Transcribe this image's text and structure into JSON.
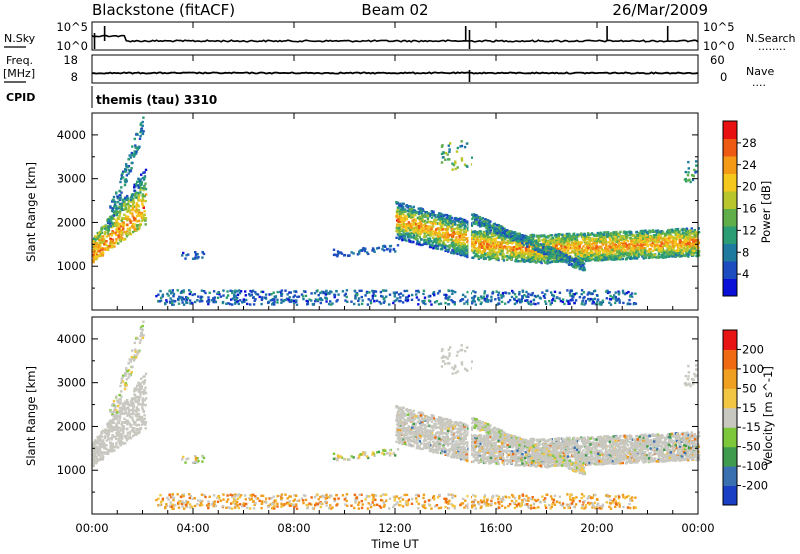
{
  "header": {
    "station": "Blackstone (fitACF)",
    "beam": "Beam 02",
    "date": "26/Mar/2009",
    "cpid_program": "themis (tau) 3310"
  },
  "left_labels": {
    "nsky": "N.Sky",
    "freq_line1": "Freq.",
    "freq_line2": "[MHz]",
    "cpid": "CPID"
  },
  "right_labels": {
    "nsearch": "N.Search",
    "nsearch_dots": "........",
    "nave": "Nave",
    "nave_dots": "...."
  },
  "noise_axis": {
    "left_ticks": [
      "10^5",
      "10^0"
    ],
    "right_ticks": [
      "10^5",
      "10^0"
    ]
  },
  "freq_axis": {
    "left_ticks": [
      "18",
      "8"
    ],
    "right_ticks": [
      "60",
      "0"
    ]
  },
  "time_axis": {
    "label": "Time UT",
    "ticks": [
      "00:00",
      "04:00",
      "08:00",
      "12:00",
      "16:00",
      "20:00",
      "00:00"
    ]
  },
  "range_axis": {
    "label": "Slant Range [km]",
    "ticks": [
      "4000",
      "3000",
      "2000",
      "1000"
    ]
  },
  "power_colorbar": {
    "label": "Power [dB]",
    "ticks": [
      "28",
      "24",
      "20",
      "16",
      "12",
      "8",
      "4"
    ],
    "colors": [
      "#0a10d8",
      "#1c4cc0",
      "#1f7aa0",
      "#2b9d75",
      "#5fae4a",
      "#b8c62c",
      "#f4c81d",
      "#f49a16",
      "#ee5a12",
      "#e81010"
    ]
  },
  "velocity_colorbar": {
    "label": "Velocity [m s^-1]",
    "ticks": [
      "200",
      "100",
      "50",
      "15",
      "-15",
      "-50",
      "-100",
      "-200"
    ],
    "colors": [
      "#1b3fc4",
      "#3a70b0",
      "#3f9c4e",
      "#7cc83a",
      "#c8c8c0",
      "#f2c642",
      "#f0a020",
      "#ef6a10",
      "#e81414"
    ]
  },
  "chart_data": [
    {
      "type": "line",
      "title": "N.Sky / N.Search",
      "x_range_hours": [
        0,
        24
      ],
      "note_scale": "log",
      "spikes_hours": [
        0.5,
        14.8,
        20.4,
        22.8
      ]
    },
    {
      "type": "line",
      "title": "Freq. / Nave",
      "x_range_hours": [
        0,
        24
      ],
      "freq_mhz_approx": 10.4
    },
    {
      "type": "heatmap",
      "title": "Power [dB]",
      "x_range_hours": [
        0,
        24
      ],
      "ylim_km": [
        0,
        4500
      ],
      "cmap_range_db": [
        0,
        32
      ]
    },
    {
      "type": "heatmap",
      "title": "Velocity [m s^-1]",
      "x_range_hours": [
        0,
        24
      ],
      "ylim_km": [
        0,
        4500
      ],
      "cmap_range_ms": [
        -250,
        250
      ]
    }
  ]
}
